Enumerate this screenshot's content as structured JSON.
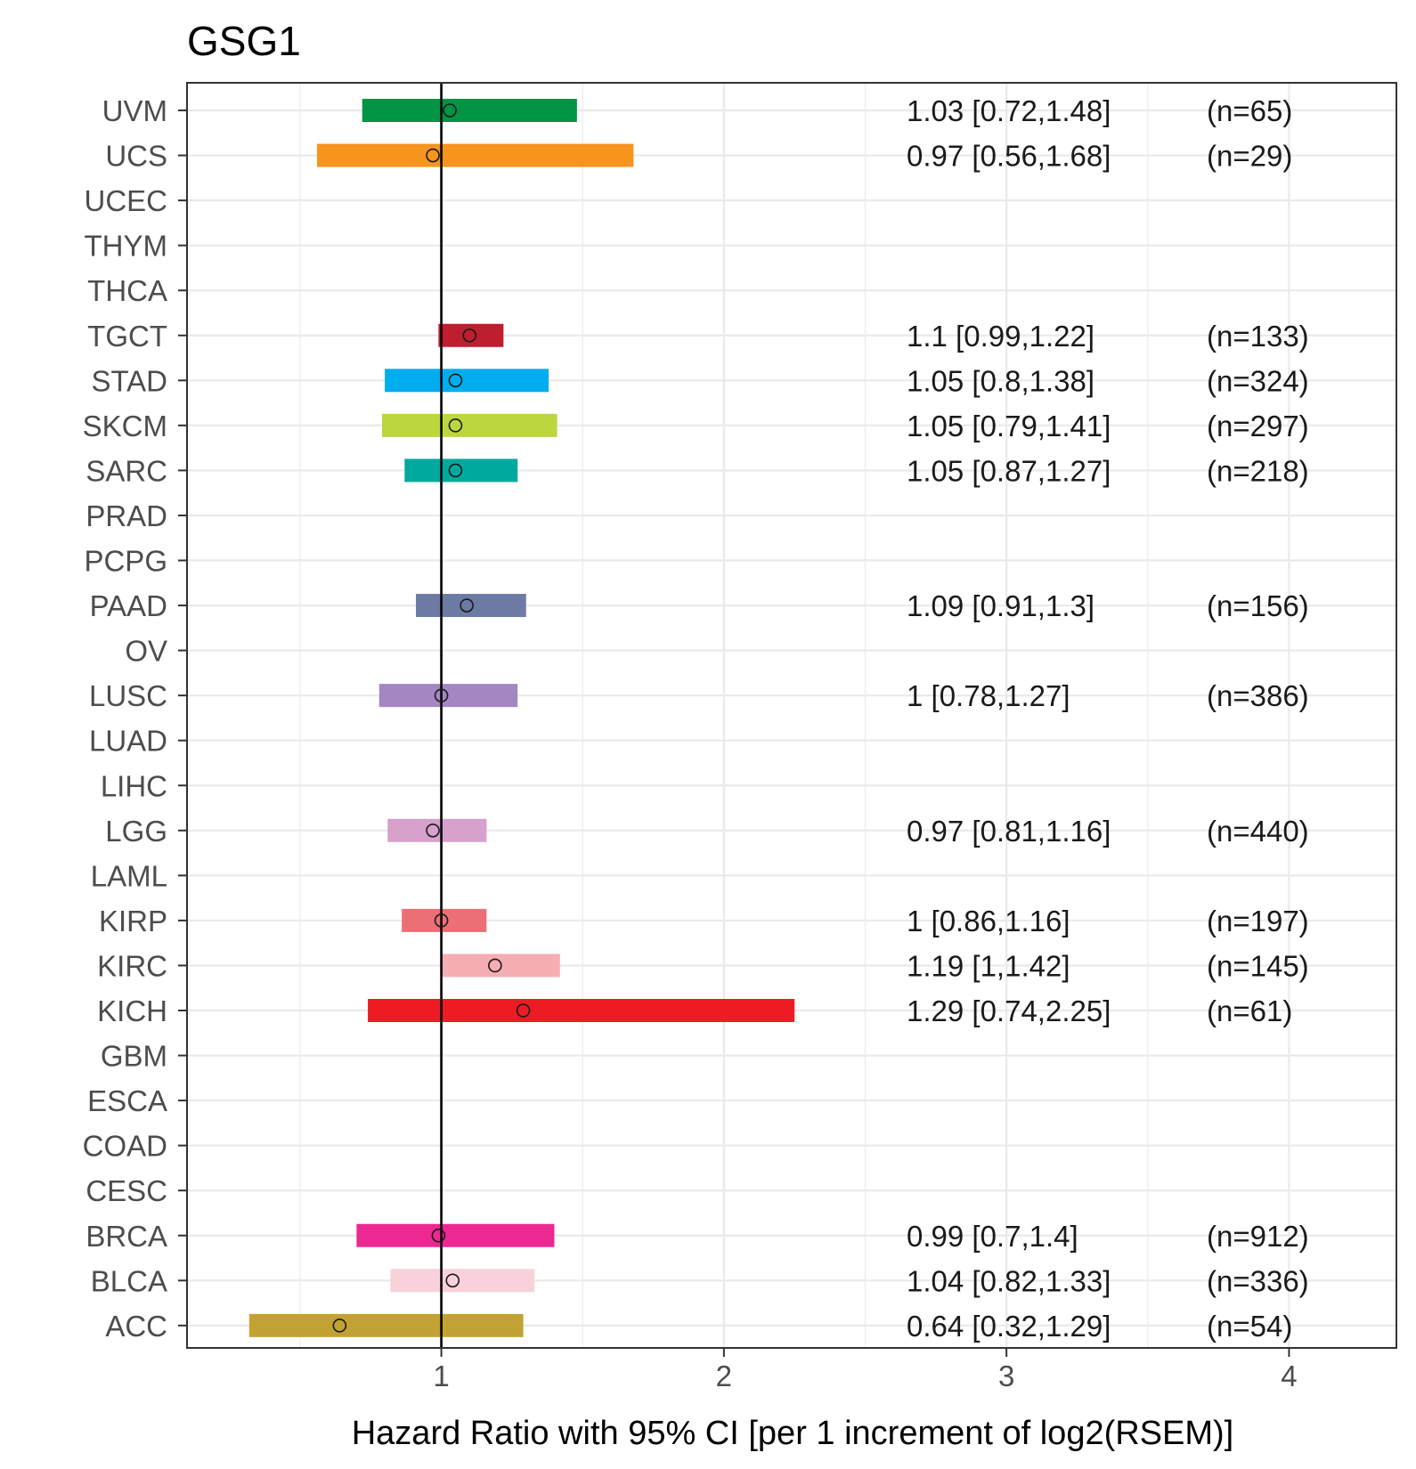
{
  "chart_data": {
    "type": "forest",
    "title": "GSG1",
    "xlabel": "Hazard Ratio with 95% CI [per 1 increment of log2(RSEM)]",
    "ylabel": "",
    "xlim": [
      0.1,
      4.38
    ],
    "xticks": [
      1,
      2,
      3,
      4
    ],
    "x_minor_gridlines": [
      0.5,
      1.5,
      2.5,
      3.5
    ],
    "reference_line": 1,
    "grid": true,
    "colors": {
      "axis": "#333333",
      "grid": "#ebebeb",
      "reference": "#000000"
    },
    "rows": [
      {
        "label": "UVM",
        "hr": 1.03,
        "lo": 0.72,
        "hi": 1.48,
        "text": "1.03 [0.72,1.48]",
        "n": "(n=65)",
        "color": "#009444"
      },
      {
        "label": "UCS",
        "hr": 0.97,
        "lo": 0.56,
        "hi": 1.68,
        "text": "0.97 [0.56,1.68]",
        "n": "(n=29)",
        "color": "#f7941d"
      },
      {
        "label": "UCEC"
      },
      {
        "label": "THYM"
      },
      {
        "label": "THCA"
      },
      {
        "label": "TGCT",
        "hr": 1.1,
        "lo": 0.99,
        "hi": 1.22,
        "text": "1.1 [0.99,1.22]",
        "n": "(n=133)",
        "color": "#be1e2d"
      },
      {
        "label": "STAD",
        "hr": 1.05,
        "lo": 0.8,
        "hi": 1.38,
        "text": "1.05 [0.8,1.38]",
        "n": "(n=324)",
        "color": "#00aeef"
      },
      {
        "label": "SKCM",
        "hr": 1.05,
        "lo": 0.79,
        "hi": 1.41,
        "text": "1.05 [0.79,1.41]",
        "n": "(n=297)",
        "color": "#bcd63f"
      },
      {
        "label": "SARC",
        "hr": 1.05,
        "lo": 0.87,
        "hi": 1.27,
        "text": "1.05 [0.87,1.27]",
        "n": "(n=218)",
        "color": "#00a99d"
      },
      {
        "label": "PRAD"
      },
      {
        "label": "PCPG"
      },
      {
        "label": "PAAD",
        "hr": 1.09,
        "lo": 0.91,
        "hi": 1.3,
        "text": "1.09 [0.91,1.3]",
        "n": "(n=156)",
        "color": "#6d7ba4"
      },
      {
        "label": "OV"
      },
      {
        "label": "LUSC",
        "hr": 1,
        "lo": 0.78,
        "hi": 1.27,
        "text": "1 [0.78,1.27]",
        "n": "(n=386)",
        "color": "#a387c2"
      },
      {
        "label": "LUAD"
      },
      {
        "label": "LIHC"
      },
      {
        "label": "LGG",
        "hr": 0.97,
        "lo": 0.81,
        "hi": 1.16,
        "text": "0.97 [0.81,1.16]",
        "n": "(n=440)",
        "color": "#d7a0cd"
      },
      {
        "label": "LAML"
      },
      {
        "label": "KIRP",
        "hr": 1,
        "lo": 0.86,
        "hi": 1.16,
        "text": "1 [0.86,1.16]",
        "n": "(n=197)",
        "color": "#ec6f76"
      },
      {
        "label": "KIRC",
        "hr": 1.19,
        "lo": 1,
        "hi": 1.42,
        "text": "1.19 [1,1.42]",
        "n": "(n=145)",
        "color": "#f6adb3"
      },
      {
        "label": "KICH",
        "hr": 1.29,
        "lo": 0.74,
        "hi": 2.25,
        "text": "1.29 [0.74,2.25]",
        "n": "(n=61)",
        "color": "#ed1c24"
      },
      {
        "label": "GBM"
      },
      {
        "label": "ESCA"
      },
      {
        "label": "COAD"
      },
      {
        "label": "CESC"
      },
      {
        "label": "BRCA",
        "hr": 0.99,
        "lo": 0.7,
        "hi": 1.4,
        "text": "0.99 [0.7,1.4]",
        "n": "(n=912)",
        "color": "#ec2893"
      },
      {
        "label": "BLCA",
        "hr": 1.04,
        "lo": 0.82,
        "hi": 1.33,
        "text": "1.04 [0.82,1.33]",
        "n": "(n=336)",
        "color": "#f9d1da"
      },
      {
        "label": "ACC",
        "hr": 0.64,
        "lo": 0.32,
        "hi": 1.29,
        "text": "0.64 [0.32,1.29]",
        "n": "(n=54)",
        "color": "#c2a232"
      }
    ]
  }
}
